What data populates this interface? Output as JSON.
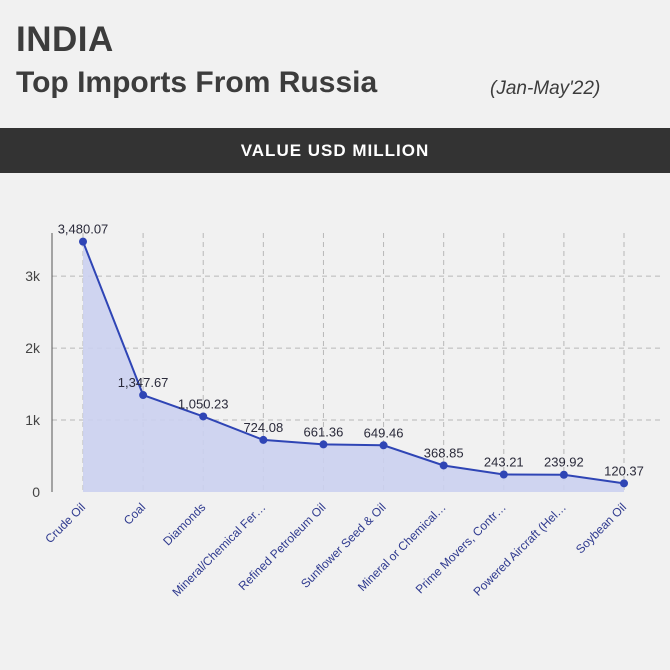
{
  "header": {
    "title": "INDIA",
    "subtitle": "Top Imports From Russia",
    "period": "(Jan-May'22)"
  },
  "band": {
    "label": "VALUE USD MILLION"
  },
  "colors": {
    "line": "#2f45b5",
    "fill": "#cbd0ef",
    "band_bg": "#333333",
    "background": "#f1f1f1"
  },
  "chart_data": {
    "type": "area",
    "title": "",
    "xlabel": "",
    "ylabel": "",
    "ylim": [
      0,
      3600
    ],
    "yticks": [
      0,
      1000,
      2000,
      3000
    ],
    "ytick_labels": [
      "0",
      "1k",
      "2k",
      "3k"
    ],
    "grid": true,
    "categories": [
      "Crude Oil",
      "Coal",
      "Diamonds",
      "Mineral/Chemical Fer…",
      "Refined Petroleum Oil",
      "Sunflower Seed & Oil",
      "Mineral or Chemical…",
      "Prime Movers, Contr…",
      "Powered Aircraft (Hel…",
      "Soybean Oil"
    ],
    "values": [
      3480.07,
      1347.67,
      1050.23,
      724.08,
      661.36,
      649.46,
      368.85,
      243.21,
      239.92,
      120.37
    ],
    "data_labels": [
      "3,480.07",
      "1,347.67",
      "1,050.23",
      "724.08",
      "661.36",
      "649.46",
      "368.85",
      "243.21",
      "239.92",
      "120.37"
    ]
  }
}
